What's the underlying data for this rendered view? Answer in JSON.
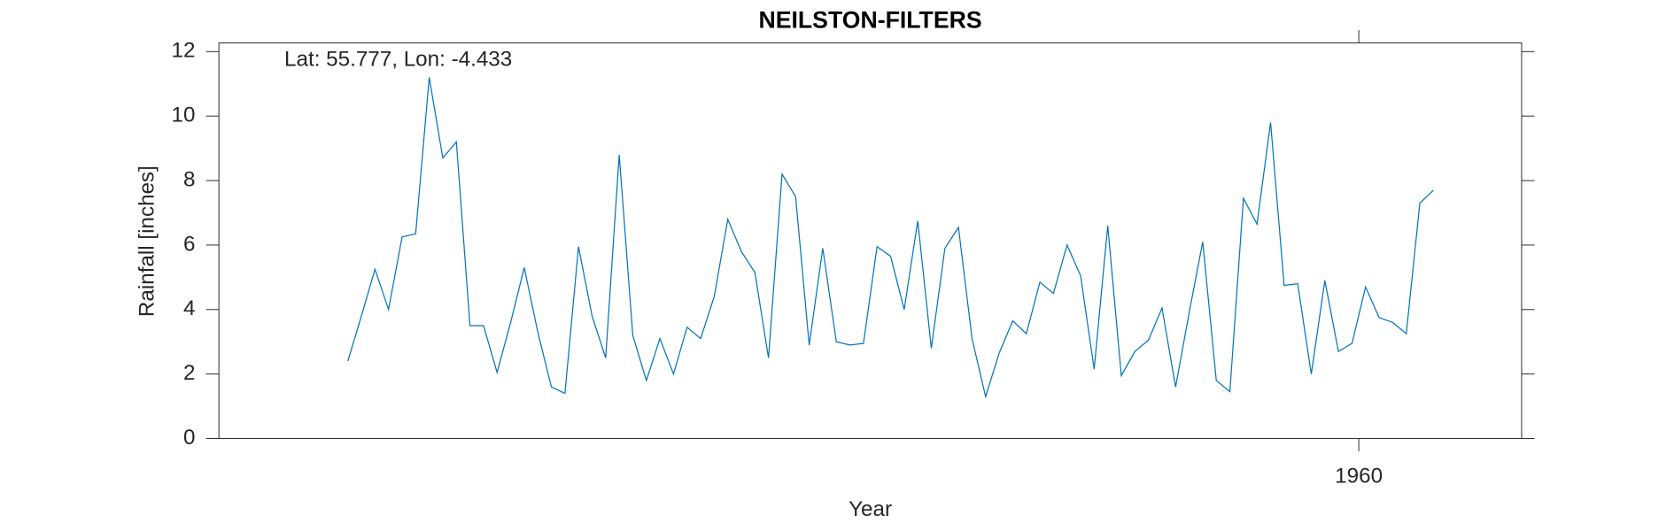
{
  "chart_data": {
    "type": "line",
    "title": "NEILSTON-FILTERS",
    "annotation": "Lat: 55.777, Lon: -4.433",
    "x_label": "Year",
    "y_label": "Rainfall [inches]",
    "x": [
      1885.5,
      1886.5,
      1887.5,
      1888.5,
      1889.5,
      1890.5,
      1891.5,
      1892.5,
      1893.5,
      1894.5,
      1895.5,
      1896.5,
      1897.5,
      1898.5,
      1899.5,
      1900.5,
      1901.5,
      1902.5,
      1903.5,
      1904.5,
      1905.5,
      1906.5,
      1907.5,
      1908.5,
      1909.5,
      1910.5,
      1911.5,
      1912.5,
      1913.5,
      1914.5,
      1915.5,
      1916.5,
      1917.5,
      1918.5,
      1919.5,
      1920.5,
      1921.5,
      1922.5,
      1923.5,
      1924.5,
      1925.5,
      1926.5,
      1927.5,
      1928.5,
      1929.5,
      1930.5,
      1931.5,
      1932.5,
      1933.5,
      1934.5,
      1935.5,
      1936.5,
      1937.5,
      1938.5,
      1939.5,
      1940.5,
      1941.5,
      1942.5,
      1943.5,
      1944.5,
      1945.5,
      1946.5,
      1947.5,
      1948.5,
      1949.5,
      1950.5,
      1951.5,
      1952.5,
      1953.5,
      1954.5,
      1955.5,
      1956.5,
      1957.5,
      1958.5,
      1959.5,
      1960.5,
      1961.5,
      1962.5,
      1963.5,
      1964.5,
      1965.5
    ],
    "series": [
      {
        "name": "Rainfall",
        "color": "#0072bd",
        "values": [
          2.4,
          3.8,
          5.25,
          4.0,
          6.25,
          6.35,
          11.2,
          8.7,
          9.2,
          3.5,
          3.5,
          2.05,
          3.6,
          5.3,
          3.3,
          1.6,
          1.4,
          5.95,
          3.8,
          2.5,
          8.8,
          3.2,
          1.8,
          3.1,
          2.0,
          3.45,
          3.1,
          4.4,
          6.8,
          5.8,
          5.15,
          2.5,
          8.2,
          7.5,
          2.9,
          5.9,
          3.0,
          2.9,
          2.95,
          5.95,
          5.65,
          4.0,
          6.75,
          2.8,
          5.9,
          6.55,
          3.1,
          1.3,
          2.65,
          3.65,
          3.25,
          4.85,
          4.5,
          6.0,
          5.05,
          2.15,
          6.6,
          1.95,
          2.7,
          3.05,
          4.05,
          1.6,
          3.9,
          6.1,
          1.8,
          1.45,
          7.45,
          6.65,
          9.8,
          4.75,
          4.8,
          2.0,
          4.9,
          2.7,
          2.95,
          4.7,
          3.75,
          3.6,
          3.25,
          7.3,
          7.7
        ]
      }
    ],
    "xlim": [
      1876,
      1972
    ],
    "xticks": [
      1960
    ],
    "ylim": [
      0,
      12.27
    ],
    "yticks": [
      0,
      2,
      4,
      6,
      8,
      10,
      12
    ]
  }
}
